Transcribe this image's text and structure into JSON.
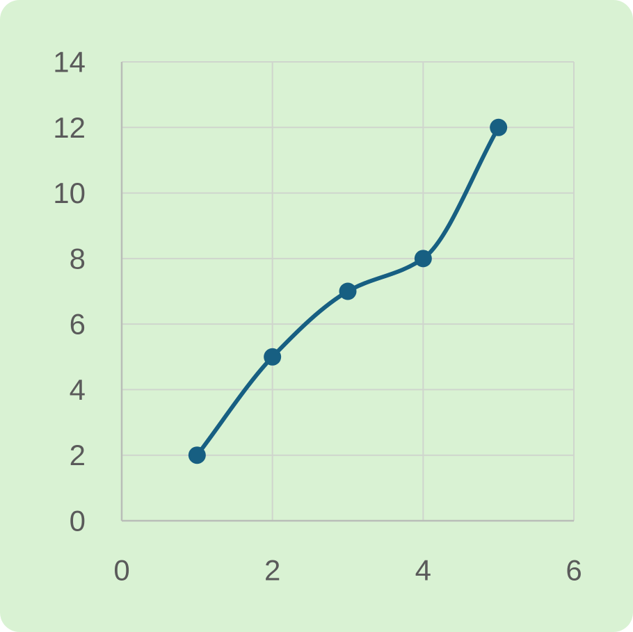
{
  "colors": {
    "background": "#d9f2d3",
    "grid": "#cfd5cd",
    "axis": "#b9bdb8",
    "tick_text": "#5a5a5a",
    "series": "#175f82"
  },
  "chart_data": {
    "type": "line",
    "smooth": true,
    "markers": true,
    "grid": true,
    "xlim": [
      0,
      6
    ],
    "ylim": [
      0,
      14
    ],
    "xticks": [
      0,
      2,
      4,
      6
    ],
    "yticks": [
      0,
      2,
      4,
      6,
      8,
      10,
      12,
      14
    ],
    "series": [
      {
        "x": [
          1,
          2,
          3,
          4,
          5
        ],
        "y": [
          2,
          5,
          7,
          8,
          12
        ]
      }
    ]
  }
}
